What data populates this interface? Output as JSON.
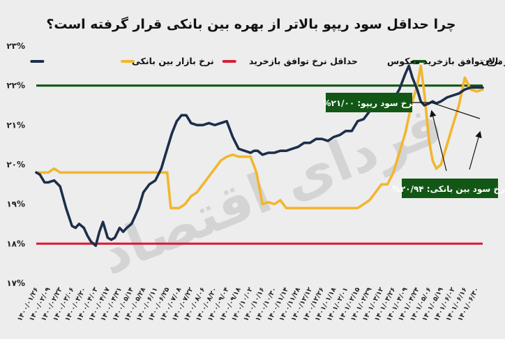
{
  "chart_data": {
    "type": "line",
    "title": "چرا حداقل سود ریپو بالاتر از بهره بین بانکی قرار گرفته است؟",
    "ylim": [
      17,
      23
    ],
    "yticks": [
      "۱۷%",
      "۱۸%",
      "۱۹%",
      "۲۰%",
      "۲۱%",
      "۲۲%",
      "۲۳%"
    ],
    "ytick_values": [
      17,
      18,
      19,
      20,
      21,
      22,
      23
    ],
    "grid": false,
    "legend_placement": "top",
    "categories": [
      "۱۴۰۰/۰۱/۲۶",
      "۱۴۰۰/۰۲/۰۹",
      "۱۴۰۰/۰۲/۲۳",
      "۱۴۰۰/۰۳/۰۶",
      "۱۴۰۰/۰۳/۲۰",
      "۱۴۰۰/۰۴/۰۳",
      "۱۴۰۰/۰۴/۱۷",
      "۱۴۰۰/۰۴/۳۱",
      "۱۴۰۰/۰۵/۱۴",
      "۱۴۰۰/۰۵/۲۸",
      "۱۴۰۰/۰۶/۱۱",
      "۱۴۰۰/۰۶/۲۵",
      "۱۴۰۰/۰۷/۰۸",
      "۱۴۰۰/۰۷/۲۲",
      "۱۴۰۰/۰۸/۰۶",
      "۱۴۰۰/۰۸/۲۰",
      "۱۴۰۰/۰۹/۰۴",
      "۱۴۰۰/۰۹/۱۸",
      "۱۴۰۰/۱۰/۰۲",
      "۱۴۰۰/۱۰/۱۶",
      "۱۴۰۰/۱۰/۳۰",
      "۱۴۰۰/۱۱/۱۴",
      "۱۴۰۰/۱۱/۲۸",
      "۱۴۰۰/۱۲/۱۲",
      "۱۴۰۰/۱۲/۲۶",
      "۱۴۰۱/۰۱/۱۸",
      "۱۴۰۱/۰۲/۰۱",
      "۱۴۰۱/۰۲/۱۵",
      "۱۴۰۱/۰۲/۲۹",
      "۱۴۰۱/۰۳/۱۲",
      "۱۴۰۱/۰۳/۲۶",
      "۱۴۰۱/۰۴/۰۹",
      "۱۴۰۱/۰۴/۲۴",
      "۱۴۰۱/۰۵/۰۶",
      "۱۴۰۱/۰۵/۱۹",
      "۱۴۰۱/۰۶/۰۲",
      "۱۴۰۱/۰۶/۱۶",
      "۱۴۰۱/۰۶/۳۰"
    ],
    "series": [
      {
        "name": "نرخ بازار بین بانکی",
        "color": "#1c2e4a",
        "x": [
          0,
          0.3,
          0.7,
          1,
          1.5,
          2,
          2.5,
          3,
          3.3,
          3.6,
          4,
          4.3,
          4.6,
          5,
          5.3,
          5.6,
          6,
          6.3,
          6.6,
          7,
          7.3,
          7.6,
          8,
          8.3,
          8.6,
          9,
          9.5,
          10,
          10.5,
          11,
          11.4,
          11.8,
          12.2,
          12.6,
          13,
          13.5,
          14,
          14.5,
          15,
          15.5,
          16,
          16.5,
          17,
          17.5,
          18,
          18.3,
          18.6,
          19,
          19.5,
          20,
          20.5,
          21,
          21.5,
          22,
          22.5,
          23,
          23.5,
          24,
          24.5,
          25,
          25.5,
          26,
          26.5,
          27,
          27.5,
          28,
          28.5,
          29,
          29.5,
          30,
          30.5,
          31,
          31.3,
          31.6,
          32,
          32.3,
          32.6,
          33,
          33.3,
          33.6,
          34,
          34.5,
          35,
          35.5,
          36,
          36.5,
          37,
          37.5
        ],
        "y": [
          19.8,
          19.75,
          19.55,
          19.55,
          19.6,
          19.45,
          18.9,
          18.45,
          18.4,
          18.5,
          18.4,
          18.2,
          18.05,
          17.95,
          18.3,
          18.55,
          18.15,
          18.1,
          18.15,
          18.4,
          18.3,
          18.4,
          18.5,
          18.7,
          18.9,
          19.3,
          19.5,
          19.6,
          19.9,
          20.4,
          20.8,
          21.1,
          21.25,
          21.25,
          21.05,
          21.0,
          21.0,
          21.05,
          21.0,
          21.05,
          21.1,
          20.7,
          20.4,
          20.35,
          20.3,
          20.35,
          20.35,
          20.25,
          20.3,
          20.3,
          20.35,
          20.35,
          20.4,
          20.45,
          20.55,
          20.55,
          20.65,
          20.65,
          20.6,
          20.7,
          20.75,
          20.85,
          20.85,
          21.1,
          21.15,
          21.35,
          21.5,
          21.6,
          21.6,
          21.65,
          21.9,
          22.3,
          22.5,
          22.2,
          21.9,
          21.6,
          21.5,
          21.55,
          21.6,
          21.55,
          21.6,
          21.7,
          21.75,
          21.8,
          21.9,
          21.95,
          21.95,
          21.95
        ]
      },
      {
        "name": "حداقل نرخ توافق بازخرید",
        "color": "#f2b62e",
        "x": [
          0,
          1,
          1.5,
          2,
          2.5,
          3,
          4,
          5,
          6,
          7,
          8,
          9,
          10,
          10.5,
          11,
          11.3,
          11.7,
          12,
          12.5,
          13,
          13.5,
          14,
          14.5,
          15,
          15.5,
          16,
          16.5,
          17,
          17.5,
          18,
          18.5,
          19,
          19.5,
          20,
          20.5,
          21,
          22,
          23,
          24,
          25,
          26,
          27,
          27.5,
          28,
          28.5,
          29,
          29.5,
          30,
          30.5,
          31,
          31.5,
          32,
          32.3,
          32.6,
          33,
          33.3,
          33.6,
          34,
          34.5,
          35,
          35.5,
          36,
          36.5,
          37,
          37.5
        ],
        "y": [
          19.8,
          19.8,
          19.9,
          19.8,
          19.8,
          19.8,
          19.8,
          19.8,
          19.8,
          19.8,
          19.8,
          19.8,
          19.8,
          19.8,
          19.8,
          18.9,
          18.9,
          18.9,
          19.0,
          19.2,
          19.3,
          19.5,
          19.7,
          19.9,
          20.1,
          20.2,
          20.25,
          20.2,
          20.2,
          20.2,
          19.8,
          19.0,
          19.05,
          19.0,
          19.1,
          18.9,
          18.9,
          18.9,
          18.9,
          18.9,
          18.9,
          18.9,
          19.0,
          19.1,
          19.3,
          19.5,
          19.5,
          19.8,
          20.3,
          20.8,
          21.5,
          22.0,
          22.5,
          21.8,
          20.6,
          20.1,
          19.9,
          20.0,
          20.5,
          21.0,
          21.5,
          22.2,
          21.9,
          21.85,
          21.9
        ]
      },
      {
        "name": "حداکثر نرخ توافق بازخرید معکوس",
        "color": "#d81f3a",
        "x": [
          0,
          37.5
        ],
        "y": [
          18,
          18
        ]
      },
      {
        "name": "سقف دالان",
        "color": "#125716",
        "x": [
          0,
          37.5
        ],
        "y": [
          22,
          22
        ]
      }
    ],
    "annotations": [
      {
        "text": "نرخ سود ریپو: ۲۱/۰۰%"
      },
      {
        "text": "نرخ سود بین بانکی: ۲۰/۹۴%"
      }
    ],
    "watermark_text": "فردای اقتصاد"
  }
}
